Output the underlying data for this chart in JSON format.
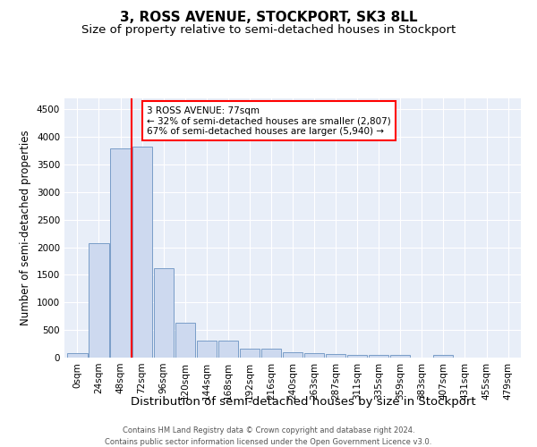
{
  "title": "3, ROSS AVENUE, STOCKPORT, SK3 8LL",
  "subtitle": "Size of property relative to semi-detached houses in Stockport",
  "xlabel": "Distribution of semi-detached houses by size in Stockport",
  "ylabel": "Number of semi-detached properties",
  "footnote1": "Contains HM Land Registry data © Crown copyright and database right 2024.",
  "footnote2": "Contains public sector information licensed under the Open Government Licence v3.0.",
  "bin_labels": [
    "0sqm",
    "24sqm",
    "48sqm",
    "72sqm",
    "96sqm",
    "120sqm",
    "144sqm",
    "168sqm",
    "192sqm",
    "216sqm",
    "240sqm",
    "263sqm",
    "287sqm",
    "311sqm",
    "335sqm",
    "359sqm",
    "383sqm",
    "407sqm",
    "431sqm",
    "455sqm",
    "479sqm"
  ],
  "bar_values": [
    80,
    2070,
    3800,
    3820,
    1620,
    630,
    310,
    310,
    160,
    160,
    100,
    80,
    65,
    55,
    50,
    45,
    0,
    45,
    0,
    0,
    0
  ],
  "bar_color": "#cdd9ef",
  "bar_edge_color": "#7a9dc8",
  "vline_x": 2.52,
  "vline_color": "red",
  "annotation_text": "3 ROSS AVENUE: 77sqm\n← 32% of semi-detached houses are smaller (2,807)\n67% of semi-detached houses are larger (5,940) →",
  "annotation_box_color": "white",
  "annotation_box_edge_color": "red",
  "ylim": [
    0,
    4700
  ],
  "yticks": [
    0,
    500,
    1000,
    1500,
    2000,
    2500,
    3000,
    3500,
    4000,
    4500
  ],
  "bg_color": "#e8eef8",
  "plot_bg_color": "#e8eef8",
  "title_fontsize": 11,
  "subtitle_fontsize": 9.5,
  "xlabel_fontsize": 9.5,
  "ylabel_fontsize": 8.5,
  "tick_fontsize": 7.5,
  "annot_fontsize": 7.5,
  "footnote_fontsize": 6.0
}
